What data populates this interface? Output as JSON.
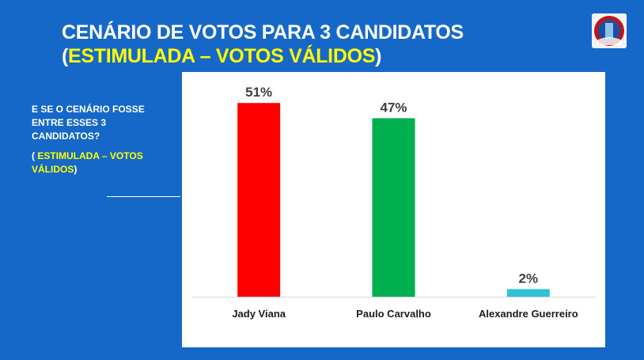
{
  "title": {
    "line1": "CENÁRIO DE VOTOS PARA 3 CANDIDATOS",
    "open_paren": "(",
    "highlight": "ESTIMULADA – VOTOS VÁLIDOS",
    "close_paren": ")"
  },
  "sidebar": {
    "question": "E SE O CENÁRIO FOSSE ENTRE ESSES 3 CANDIDATOS?",
    "open_paren": "( ",
    "highlight": "ESTIMULADA – VOTOS VÁLIDOS",
    "close_paren": ")"
  },
  "colors": {
    "background": "#1668c8",
    "title_text": "#ffffff",
    "highlight_text": "#ffff00"
  },
  "chart_data": {
    "type": "bar",
    "categories": [
      "Jady Viana",
      "Paulo Carvalho",
      "Alexandre Guerreiro"
    ],
    "values": [
      51,
      47,
      2
    ],
    "labels": [
      "51%",
      "47%",
      "2%"
    ],
    "colors": [
      "#ff0000",
      "#00b050",
      "#2ec4d6"
    ],
    "ylim": [
      0,
      55
    ],
    "grid": false,
    "legend": "none"
  }
}
